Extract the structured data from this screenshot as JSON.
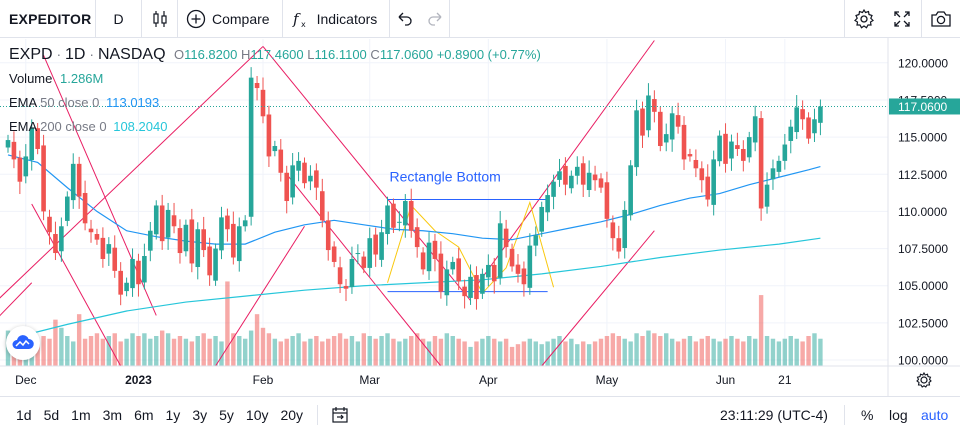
{
  "toolbar": {
    "symbol": "EXPEDITOR",
    "interval": "D",
    "compare_label": "Compare",
    "indicators_label": "Indicators"
  },
  "legend": {
    "symbol": "EXPD",
    "interval": "1D",
    "exchange": "NASDAQ",
    "open_label": "O",
    "open": "116.8200",
    "high_label": "H",
    "high": "117.4600",
    "low_label": "L",
    "low": "116.1100",
    "close_label": "C",
    "close": "117.0600",
    "change": "+0.8900 (+0.77%)",
    "volume_label": "Volume",
    "volume": "1.286M",
    "ema50_label": "EMA",
    "ema50_params": "50 close 0",
    "ema50_value": "113.0193",
    "ema200_label": "EMA",
    "ema200_params": "200 close 0",
    "ema200_value": "108.2040"
  },
  "annotation": "Rectangle Bottom",
  "price_tag": "117.0600",
  "bottom": {
    "ranges": [
      "1d",
      "5d",
      "1m",
      "3m",
      "6m",
      "1y",
      "3y",
      "5y",
      "10y",
      "20y"
    ],
    "time": "23:11:29 (UTC-4)",
    "percent": "%",
    "log": "log",
    "auto": "auto"
  },
  "colors": {
    "up": "#26a69a",
    "down": "#ef5350",
    "ema50": "#2196f3",
    "ema200": "#26c6da",
    "drawing": "#e91e63",
    "rect": "#2962ff",
    "accent": "#2962ff"
  },
  "chart_data": {
    "type": "candlestick",
    "y_axis": {
      "ticks": [
        100.0,
        102.5,
        105.0,
        107.5,
        110.0,
        112.5,
        115.0,
        117.5,
        120.0
      ],
      "tick_labels": [
        "100.0000",
        "102.5000",
        "105.0000",
        "107.5000",
        "110.0000",
        "112.5000",
        "115.0000",
        "117.5000",
        "120.0000"
      ],
      "range": [
        99.6,
        121.6
      ]
    },
    "x_axis": {
      "tick_labels": [
        "Dec",
        "2023",
        "Feb",
        "Mar",
        "Apr",
        "May",
        "Jun",
        "21"
      ],
      "tick_index": [
        3,
        22,
        43,
        61,
        81,
        101,
        121,
        131
      ]
    },
    "volume_range": [
      0,
      2.2
    ],
    "closes": [
      114.8,
      113.5,
      112.0,
      113.7,
      115.6,
      114.2,
      110.0,
      108.6,
      107.2,
      109.0,
      111.0,
      113.2,
      111.0,
      109.2,
      108.6,
      108.1,
      106.8,
      107.8,
      106.0,
      104.4,
      105.2,
      106.8,
      105.1,
      107.0,
      108.7,
      110.4,
      108.0,
      110.1,
      109.0,
      107.2,
      109.1,
      106.5,
      108.8,
      107.4,
      105.7,
      107.5,
      109.6,
      108.8,
      106.9,
      109.0,
      109.4,
      119.0,
      118.3,
      116.4,
      113.7,
      114.4,
      112.6,
      110.7,
      113.1,
      113.4,
      111.9,
      112.4,
      111.6,
      109.4,
      107.4,
      106.6,
      105.1,
      104.8,
      106.8,
      107.2,
      106.2,
      108.2,
      107.1,
      108.6,
      110.4,
      108.9,
      109.3,
      110.7,
      108.7,
      107.6,
      106.1,
      107.9,
      106.8,
      104.6,
      106.1,
      106.6,
      105.3,
      104.3,
      105.6,
      104.1,
      105.8,
      106.4,
      105.3,
      109.2,
      107.6,
      106.3,
      105.8,
      105.1,
      107.7,
      108.4,
      110.3,
      111.1,
      112.0,
      112.7,
      111.8,
      112.4,
      113.0,
      111.8,
      112.6,
      112.1,
      111.6,
      109.5,
      108.2,
      107.3,
      110.1,
      113.1,
      116.8,
      115.1,
      117.8,
      116.7,
      114.4,
      115.2,
      116.6,
      115.7,
      113.5,
      113.7,
      112.9,
      112.1,
      110.8,
      113.5,
      115.1,
      113.2,
      114.7,
      114.2,
      113.4,
      115.0,
      116.4,
      110.2,
      111.8,
      112.9,
      113.4,
      114.5,
      115.7,
      117.0,
      116.2,
      114.9,
      116.2,
      117.06
    ],
    "volumes": [
      0.65,
      0.3,
      0.55,
      0.6,
      0.5,
      0.45,
      0.55,
      0.5,
      0.85,
      0.7,
      0.55,
      0.45,
      0.95,
      0.5,
      0.55,
      0.6,
      0.5,
      0.55,
      0.6,
      0.45,
      0.5,
      0.6,
      0.55,
      0.6,
      0.5,
      0.55,
      0.65,
      0.6,
      0.5,
      0.55,
      0.5,
      0.45,
      0.55,
      0.6,
      0.5,
      0.55,
      0.45,
      1.55,
      0.6,
      0.55,
      0.5,
      0.65,
      0.95,
      0.7,
      0.6,
      0.5,
      0.45,
      0.5,
      0.55,
      0.6,
      0.45,
      0.5,
      0.55,
      0.45,
      0.5,
      0.55,
      0.6,
      0.5,
      0.55,
      0.45,
      0.6,
      0.55,
      0.5,
      0.55,
      0.6,
      0.5,
      0.45,
      0.5,
      0.55,
      0.6,
      0.5,
      0.45,
      0.55,
      0.5,
      0.6,
      0.55,
      0.5,
      0.45,
      0.35,
      0.45,
      0.5,
      0.55,
      0.5,
      0.45,
      0.5,
      0.35,
      0.4,
      0.45,
      0.5,
      0.45,
      0.4,
      0.45,
      0.5,
      0.55,
      0.45,
      0.5,
      0.4,
      0.45,
      0.4,
      0.45,
      0.5,
      0.55,
      0.6,
      0.55,
      0.5,
      0.45,
      0.6,
      0.55,
      0.65,
      0.6,
      0.55,
      0.6,
      0.5,
      0.45,
      0.5,
      0.55,
      0.45,
      0.5,
      0.55,
      0.5,
      0.45,
      0.5,
      0.55,
      0.5,
      0.45,
      0.55,
      0.5,
      1.3,
      0.55,
      0.5,
      0.45,
      0.5,
      0.55,
      0.5,
      0.45,
      0.55,
      0.6,
      0.5
    ],
    "ema50": [
      [
        0,
        113.8
      ],
      [
        5,
        113.3
      ],
      [
        10,
        111.6
      ],
      [
        15,
        110.0
      ],
      [
        20,
        108.7
      ],
      [
        25,
        108.3
      ],
      [
        30,
        108.0
      ],
      [
        35,
        107.8
      ],
      [
        40,
        107.8
      ],
      [
        45,
        108.6
      ],
      [
        50,
        109.1
      ],
      [
        55,
        109.4
      ],
      [
        60,
        109.1
      ],
      [
        65,
        108.8
      ],
      [
        70,
        108.7
      ],
      [
        75,
        108.5
      ],
      [
        80,
        108.2
      ],
      [
        85,
        108.1
      ],
      [
        90,
        108.5
      ],
      [
        95,
        108.9
      ],
      [
        100,
        109.3
      ],
      [
        105,
        109.8
      ],
      [
        110,
        110.4
      ],
      [
        115,
        110.9
      ],
      [
        120,
        111.2
      ],
      [
        125,
        111.8
      ],
      [
        130,
        112.3
      ],
      [
        135,
        112.8
      ],
      [
        137,
        113.02
      ]
    ],
    "ema200": [
      [
        0,
        101.4
      ],
      [
        10,
        102.4
      ],
      [
        20,
        103.3
      ],
      [
        30,
        103.9
      ],
      [
        40,
        104.3
      ],
      [
        50,
        104.7
      ],
      [
        60,
        105.0
      ],
      [
        70,
        105.2
      ],
      [
        80,
        105.4
      ],
      [
        90,
        105.8
      ],
      [
        100,
        106.3
      ],
      [
        110,
        106.9
      ],
      [
        120,
        107.4
      ],
      [
        130,
        107.8
      ],
      [
        137,
        108.2
      ]
    ],
    "rectangle": {
      "from": 64,
      "to": 91,
      "top": 110.8,
      "bottom": 104.6,
      "label": "Rectangle Bottom"
    },
    "pattern_lines": [
      [
        [
          64,
          105.2
        ],
        [
          68,
          110.4
        ],
        [
          72,
          108.7
        ],
        [
          76,
          107.6
        ],
        [
          80,
          104.5
        ],
        [
          84,
          106.2
        ],
        [
          88,
          110.6
        ],
        [
          92,
          104.9
        ]
      ]
    ],
    "trend_lines": [
      [
        [
          -5,
          102.8
        ],
        [
          43,
          121.1
        ]
      ],
      [
        [
          6,
          120.5
        ],
        [
          25,
          103.0
        ]
      ],
      [
        [
          4,
          110.5
        ],
        [
          19,
          99.6
        ]
      ],
      [
        [
          47,
          112.5
        ],
        [
          73,
          99.6
        ]
      ],
      [
        [
          43,
          121.1
        ],
        [
          78,
          104.0
        ]
      ],
      [
        [
          79,
          105.0
        ],
        [
          109,
          121.5
        ]
      ],
      [
        [
          90,
          99.6
        ],
        [
          109,
          108.7
        ]
      ],
      [
        [
          35,
          99.6
        ],
        [
          50,
          109.0
        ]
      ],
      [
        [
          -5,
          101.5
        ],
        [
          4,
          105.2
        ]
      ]
    ]
  }
}
